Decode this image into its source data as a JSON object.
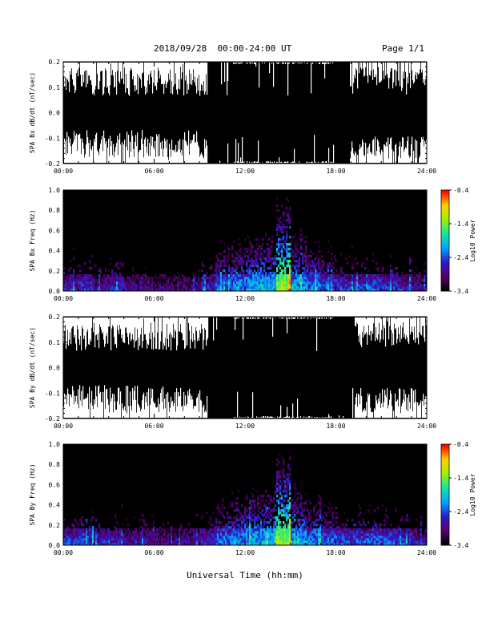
{
  "header": {
    "title": "2018/09/28  00:00-24:00 UT",
    "page": "Page 1/1"
  },
  "x_axis_title": "Universal Time (hh:mm)",
  "colors": {
    "waveform": "#000000",
    "background": "#ffffff",
    "spectrogram_background": "#000000",
    "colormap": [
      "#000000",
      "#5a006e",
      "#2a1ccc",
      "#00a8ff",
      "#10e8a0",
      "#a0f000",
      "#ffd000",
      "#ff0000"
    ]
  },
  "chart_data": [
    {
      "type": "line",
      "panel": "bx-waveform",
      "ylabel": "SPA Bx dB/dt (nT/sec)",
      "xlim": [
        "00:00",
        "24:00"
      ],
      "ylim": [
        -0.2,
        0.2
      ],
      "x_ticks": [
        "00:00",
        "06:00",
        "12:00",
        "18:00",
        "24:00"
      ],
      "y_ticks": [
        "0.2",
        "0.1",
        "0.0",
        "-0.1",
        "-0.2"
      ],
      "y_tick_values": [
        0.2,
        0.1,
        0.0,
        -0.1,
        -0.2
      ],
      "envelope_note_hours": [
        0,
        6,
        9,
        12,
        15,
        18,
        21,
        24
      ],
      "series": [
        {
          "values_upper": [
            0.2,
            0.2,
            0.2,
            0.2,
            0.2,
            0.2,
            0.2,
            0.2
          ],
          "values_lower": [
            -0.2,
            -0.16,
            -0.2,
            -0.2,
            -0.2,
            -0.2,
            -0.2,
            -0.15
          ]
        }
      ]
    },
    {
      "type": "heatmap",
      "panel": "bx-spectrogram",
      "ylabel": "SPA Bx Freq (Hz)",
      "xlim": [
        "00:00",
        "24:00"
      ],
      "ylim": [
        0.0,
        1.0
      ],
      "x_ticks": [
        "00:00",
        "06:00",
        "12:00",
        "18:00",
        "24:00"
      ],
      "y_ticks": [
        "1.0",
        "0.8",
        "0.6",
        "0.4",
        "0.2",
        "0.0"
      ],
      "y_tick_values": [
        1.0,
        0.8,
        0.6,
        0.4,
        0.2,
        0.0
      ],
      "colorbar": {
        "label": "Log10 Power",
        "range": [
          -3.4,
          -0.4
        ],
        "ticks": [
          "-0.4",
          "-1.4",
          "-2.4",
          "-3.4"
        ],
        "tick_values": [
          -0.4,
          -1.4,
          -2.4,
          -3.4
        ]
      },
      "hourly_low_freq_log_power": [
        -2.6,
        -2.5,
        -2.7,
        -2.6,
        -2.8,
        -2.8,
        -2.9,
        -2.9,
        -2.8,
        -2.6,
        -2.3,
        -2.1,
        -2.0,
        -1.9,
        -1.2,
        -2.0,
        -2.2,
        -2.4,
        -2.5,
        -2.5,
        -2.4,
        -2.5,
        -2.6,
        -2.8
      ]
    },
    {
      "type": "line",
      "panel": "by-waveform",
      "ylabel": "SPA By dB/dt (nT/sec)",
      "xlim": [
        "00:00",
        "24:00"
      ],
      "ylim": [
        -0.2,
        0.2
      ],
      "x_ticks": [
        "00:00",
        "06:00",
        "12:00",
        "18:00",
        "24:00"
      ],
      "y_ticks": [
        "0.2",
        "0.1",
        "0.0",
        "-0.1",
        "-0.2"
      ],
      "y_tick_values": [
        0.2,
        0.1,
        0.0,
        -0.1,
        -0.2
      ],
      "envelope_note_hours": [
        0,
        6,
        9,
        12,
        15,
        18,
        21,
        24
      ],
      "series": [
        {
          "values_upper": [
            0.2,
            0.2,
            0.2,
            0.2,
            0.2,
            0.2,
            0.2,
            0.2
          ],
          "values_lower": [
            -0.2,
            -0.2,
            -0.2,
            -0.2,
            -0.2,
            -0.2,
            -0.2,
            -0.15
          ]
        }
      ]
    },
    {
      "type": "heatmap",
      "panel": "by-spectrogram",
      "ylabel": "SPA By Freq (Hz)",
      "xlim": [
        "00:00",
        "24:00"
      ],
      "ylim": [
        0.0,
        1.0
      ],
      "x_ticks": [
        "00:00",
        "06:00",
        "12:00",
        "18:00",
        "24:00"
      ],
      "y_ticks": [
        "1.0",
        "0.8",
        "0.6",
        "0.4",
        "0.2",
        "0.0"
      ],
      "y_tick_values": [
        1.0,
        0.8,
        0.6,
        0.4,
        0.2,
        0.0
      ],
      "colorbar": {
        "label": "Log10 Power",
        "range": [
          -3.4,
          -0.4
        ],
        "ticks": [
          "-0.4",
          "-1.4",
          "-2.4",
          "-3.4"
        ],
        "tick_values": [
          -0.4,
          -1.4,
          -2.4,
          -3.4
        ]
      },
      "hourly_low_freq_log_power": [
        -2.5,
        -2.4,
        -2.6,
        -2.6,
        -2.7,
        -2.7,
        -2.8,
        -2.8,
        -2.7,
        -2.5,
        -2.2,
        -2.1,
        -2.0,
        -1.9,
        -1.2,
        -2.0,
        -2.2,
        -2.3,
        -2.4,
        -2.4,
        -2.3,
        -2.4,
        -2.5,
        -2.7
      ]
    }
  ]
}
